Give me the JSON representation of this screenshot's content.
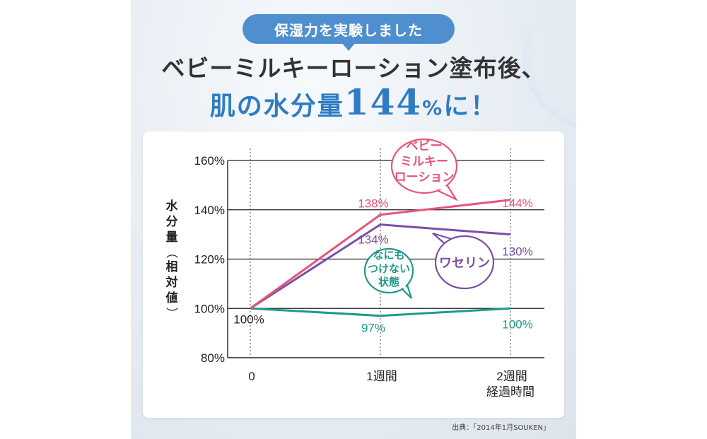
{
  "header": {
    "badge": "保湿力を実験しました",
    "line1": "ベビーミルキーローション塗布後、",
    "line2_prefix": "肌の水分量",
    "line2_number": "144",
    "line2_pct": "%",
    "line2_suffix": "に！"
  },
  "source_note": "出典：「2014年1月SOUKEN」",
  "colors": {
    "badge": "#4f8fd0",
    "headline_accent": "#2f7cc4",
    "baby_milky": "#e8547a",
    "vaseline": "#7b4ea8",
    "nothing": "#1f9a88"
  },
  "chart_data": {
    "type": "line",
    "ylabel": "水分量（相対値）",
    "xlabel": "経過時間",
    "categories": [
      "0",
      "1週間",
      "2週間"
    ],
    "y_ticks": [
      "80%",
      "100%",
      "120%",
      "140%",
      "160%"
    ],
    "ylim": [
      80,
      160
    ],
    "grid": true,
    "series": [
      {
        "name": "ベビーミルキーローション",
        "bubble_lines": [
          "ベビー",
          "ミルキー",
          "ローション"
        ],
        "color": "#e8547a",
        "values": [
          100,
          138,
          144
        ],
        "labels": [
          "",
          "138%",
          "144%"
        ]
      },
      {
        "name": "ワセリン",
        "bubble_lines": [
          "ワセリン"
        ],
        "color": "#7b4ea8",
        "values": [
          100,
          134,
          130
        ],
        "labels": [
          "",
          "134%",
          "130%"
        ]
      },
      {
        "name": "なにもつけない状態",
        "bubble_lines": [
          "なにも",
          "つけない",
          "状態"
        ],
        "color": "#1f9a88",
        "values": [
          100,
          97,
          100
        ],
        "labels": [
          "100%",
          "97%",
          "100%"
        ]
      }
    ]
  }
}
